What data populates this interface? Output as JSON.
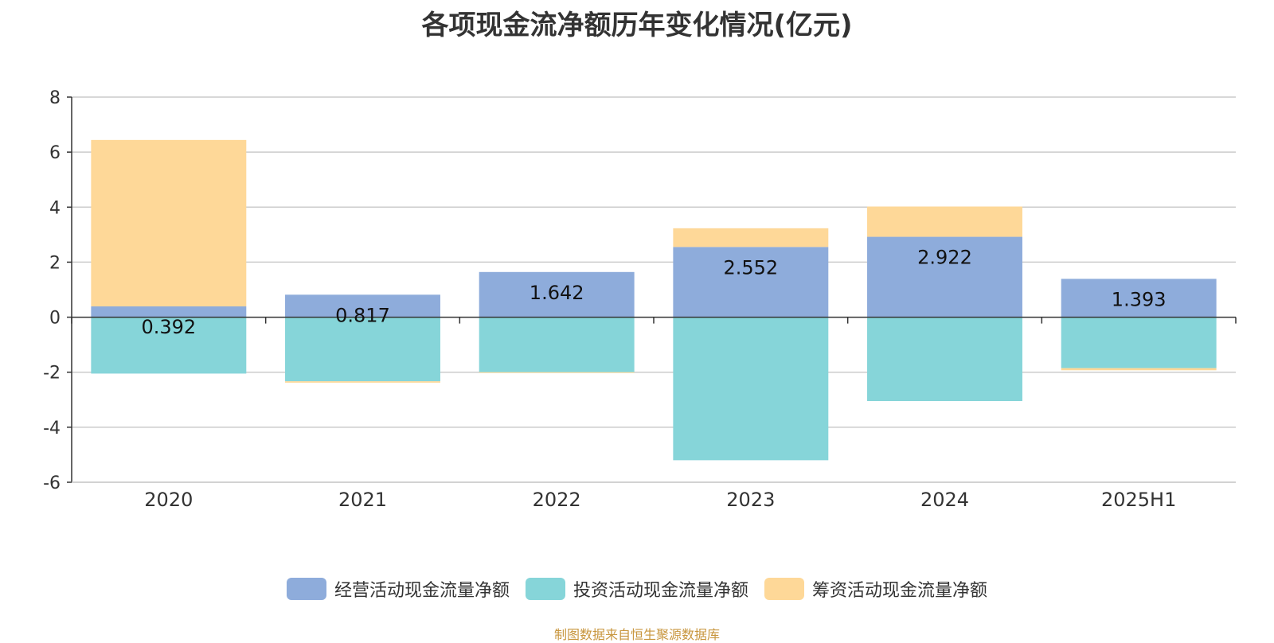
{
  "chart_data": {
    "type": "bar",
    "stacked": true,
    "title": "各项现金流净额历年变化情况(亿元)",
    "categories": [
      "2020",
      "2021",
      "2022",
      "2023",
      "2024",
      "2025H1"
    ],
    "series": [
      {
        "name": "经营活动现金流量净额",
        "color": "#8eacdb",
        "values": [
          0.392,
          0.817,
          1.642,
          2.552,
          2.922,
          1.393
        ],
        "labels": [
          "0.392",
          "0.817",
          "1.642",
          "2.552",
          "2.922",
          "1.393"
        ]
      },
      {
        "name": "投资活动现金流量净额",
        "color": "#86d5d9",
        "values": [
          -2.05,
          -2.33,
          -2.0,
          -5.2,
          -3.05,
          -1.85
        ]
      },
      {
        "name": "筹资活动现金流量净额",
        "color": "#fed898",
        "values": [
          6.05,
          -0.05,
          -0.03,
          0.68,
          1.1,
          -0.08
        ]
      }
    ],
    "ylim": [
      -6,
      8
    ],
    "yticks": [
      "-6",
      "-4",
      "-2",
      "0",
      "2",
      "4",
      "6",
      "8"
    ],
    "xlabel": "",
    "ylabel": "",
    "grid": true,
    "legend_position": "bottom"
  },
  "source_note": "制图数据来自恒生聚源数据库",
  "source_note_color": "#c8963e"
}
